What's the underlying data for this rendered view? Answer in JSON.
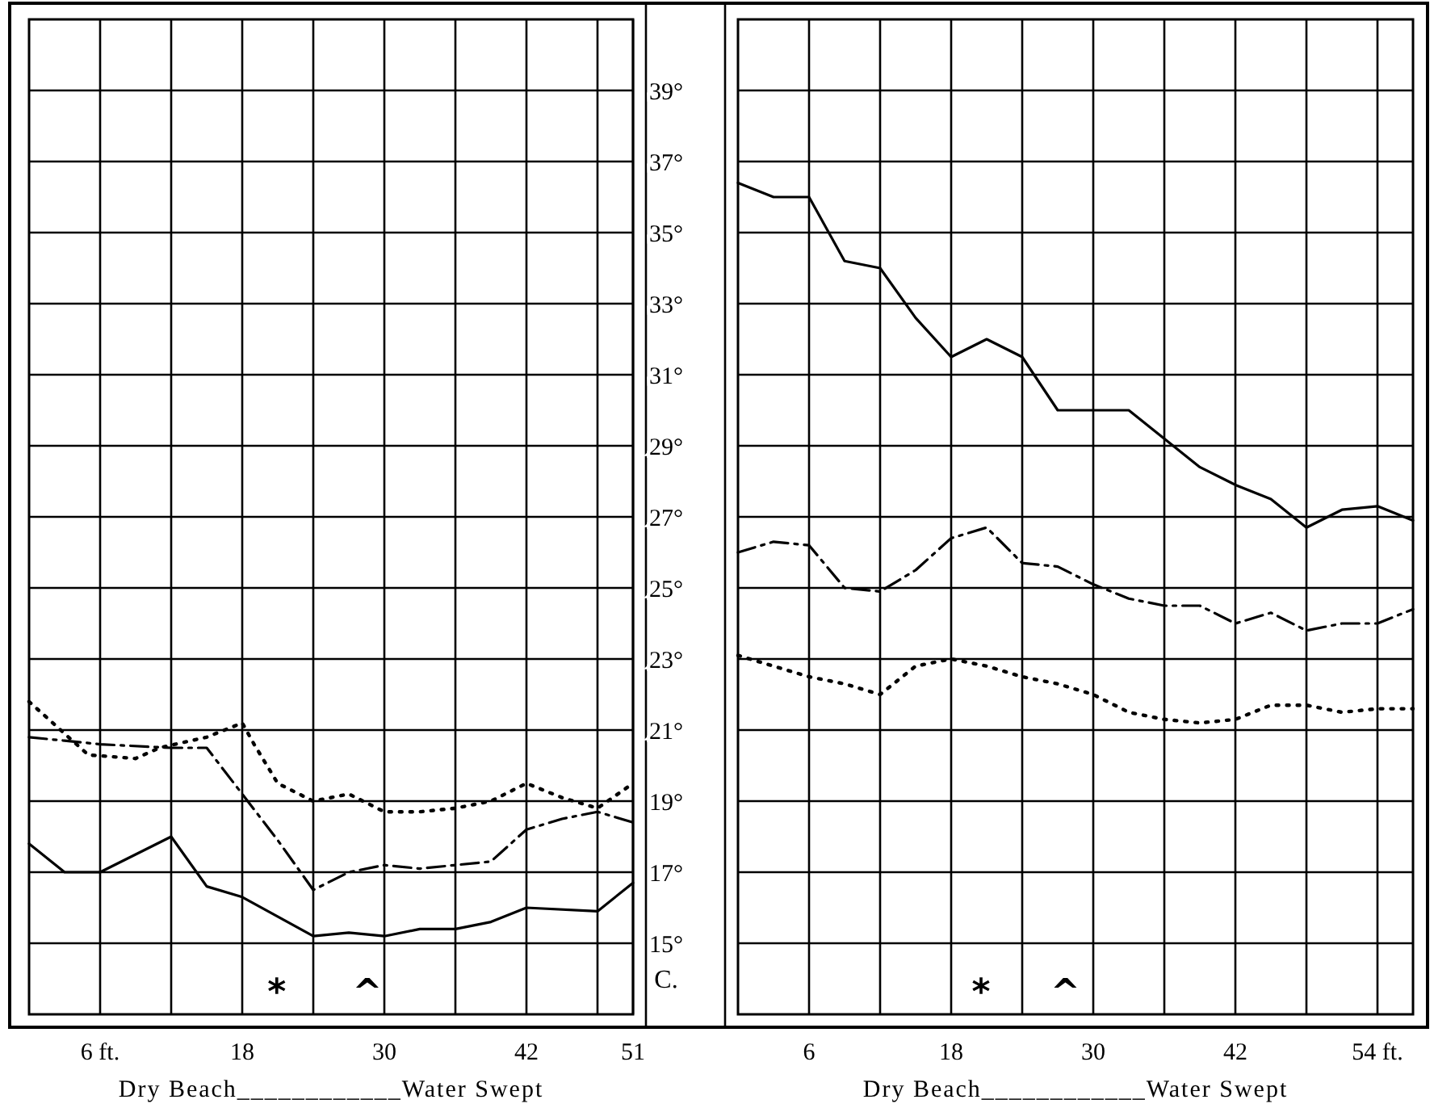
{
  "chart_data": [
    {
      "type": "line",
      "xlabel": "Dry Beach____________Water Swept",
      "xlim": [
        0,
        51
      ],
      "xticks": [
        {
          "value": 6,
          "label": "6 ft."
        },
        {
          "value": 12,
          "label": null
        },
        18,
        {
          "value": 24,
          "label": null
        },
        30,
        {
          "value": 36,
          "label": null
        },
        42,
        {
          "value": 48,
          "label": null
        },
        51
      ],
      "ylim": [
        13,
        41
      ],
      "yticks": [
        15,
        17,
        19,
        21,
        23,
        25,
        27,
        29,
        31,
        33,
        35,
        37,
        39
      ],
      "grid": true,
      "tick_labels": "x",
      "series": [
        {
          "color": "#000000",
          "line_style": "solid",
          "x": [
            0,
            3,
            6,
            12,
            15,
            18,
            24,
            27,
            30,
            33,
            36,
            39,
            42,
            48,
            51
          ],
          "values": [
            17.8,
            17.0,
            17.0,
            18.0,
            16.6,
            16.3,
            15.2,
            15.3,
            15.2,
            15.4,
            15.4,
            15.6,
            16.0,
            15.9,
            16.7
          ]
        },
        {
          "color": "#000000",
          "line_style": "dashed",
          "x": [
            0,
            3,
            6,
            12,
            15,
            18,
            21,
            24,
            27,
            30,
            33,
            36,
            39,
            42,
            45,
            48,
            51
          ],
          "values": [
            20.8,
            20.7,
            20.6,
            20.5,
            20.5,
            19.2,
            17.9,
            16.5,
            17.0,
            17.2,
            17.1,
            17.2,
            17.3,
            18.2,
            18.5,
            18.7,
            18.4
          ]
        },
        {
          "color": "#000000",
          "line_style": "dotted",
          "x": [
            0,
            2,
            5,
            9,
            11,
            15,
            18,
            19,
            21,
            24,
            27,
            30,
            33,
            36,
            39,
            42,
            45,
            48,
            51
          ],
          "values": [
            21.8,
            21.2,
            20.3,
            20.2,
            20.5,
            20.8,
            21.2,
            20.6,
            19.5,
            19.0,
            19.2,
            18.7,
            18.7,
            18.8,
            19.0,
            19.5,
            19.1,
            18.8,
            19.5
          ]
        }
      ],
      "annotations": [
        "*",
        "^"
      ]
    },
    {
      "type": "line",
      "xlabel": "Dry Beach____________Water Swept",
      "ylabel": "C.",
      "xlim": [
        0,
        57
      ],
      "xticks": [
        6,
        {
          "value": 12,
          "label": null
        },
        18,
        {
          "value": 24,
          "label": null
        },
        30,
        {
          "value": 36,
          "label": null
        },
        42,
        {
          "value": 48,
          "label": null
        },
        {
          "value": 54,
          "label": "54 ft."
        }
      ],
      "ylim": [
        13,
        41
      ],
      "yticks": [
        {
          "value": 15,
          "label": "15°"
        },
        {
          "value": 17,
          "label": "17°"
        },
        {
          "value": 19,
          "label": "19°"
        },
        {
          "value": 21,
          "label": "21°"
        },
        {
          "value": 23,
          "label": "23°"
        },
        {
          "value": 25,
          "label": "25°"
        },
        {
          "value": 27,
          "label": "27°"
        },
        {
          "value": 29,
          "label": "29°"
        },
        {
          "value": 31,
          "label": "31°"
        },
        {
          "value": 33,
          "label": "33°"
        },
        {
          "value": 35,
          "label": "35°"
        },
        {
          "value": 37,
          "label": "37°"
        },
        {
          "value": 39,
          "label": "39°"
        }
      ],
      "grid": true,
      "series": [
        {
          "color": "#000000",
          "line_style": "solid",
          "x": [
            0,
            3,
            6,
            9,
            12,
            15,
            18,
            21,
            24,
            27,
            30,
            33,
            36,
            39,
            42,
            45,
            48,
            51,
            54,
            57
          ],
          "values": [
            36.4,
            36.0,
            36.0,
            34.2,
            34.0,
            32.6,
            31.5,
            32.0,
            31.5,
            30.0,
            30.0,
            30.0,
            29.2,
            28.4,
            27.9,
            27.5,
            26.7,
            27.2,
            27.3,
            26.9
          ]
        },
        {
          "color": "#000000",
          "line_style": "dashed",
          "x": [
            0,
            3,
            6,
            9,
            12,
            15,
            18,
            21,
            24,
            27,
            30,
            33,
            36,
            39,
            42,
            45,
            48,
            51,
            54,
            57
          ],
          "values": [
            26.0,
            26.3,
            26.2,
            25.0,
            24.9,
            25.5,
            26.4,
            26.7,
            25.7,
            25.6,
            25.1,
            24.7,
            24.5,
            24.5,
            24.0,
            24.3,
            23.8,
            24.0,
            24.0,
            24.4
          ]
        },
        {
          "color": "#000000",
          "line_style": "dotted",
          "x": [
            0,
            3,
            6,
            9,
            12,
            15,
            18,
            21,
            24,
            27,
            30,
            33,
            36,
            39,
            42,
            45,
            48,
            51,
            54,
            57
          ],
          "values": [
            23.1,
            22.8,
            22.5,
            22.3,
            22.0,
            22.8,
            23.0,
            22.8,
            22.5,
            22.3,
            22.0,
            21.5,
            21.3,
            21.2,
            21.3,
            21.7,
            21.7,
            21.5,
            21.6,
            21.6
          ]
        }
      ],
      "annotations": [
        "*",
        "^"
      ]
    }
  ]
}
